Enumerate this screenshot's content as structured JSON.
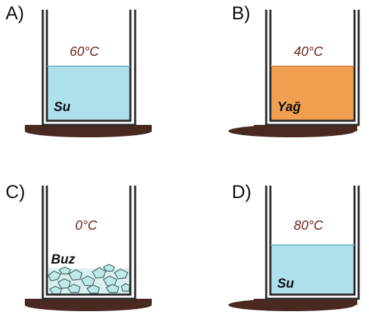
{
  "options": {
    "a": {
      "letter": "A)",
      "temperature": "60°C",
      "substance": "Su"
    },
    "b": {
      "letter": "B)",
      "temperature": "40°C",
      "substance": "Yağ"
    },
    "c": {
      "letter": "C)",
      "temperature": "0°C",
      "substance": "Buz"
    },
    "d": {
      "letter": "D)",
      "temperature": "80°C",
      "substance": "Su"
    }
  },
  "colors": {
    "water": "#aee0ec",
    "oil": "#f0a050",
    "ice": "#bfe8e8",
    "beaker_wall": "#2a2a2a",
    "base_shadow": "#4a2a20",
    "temperature_text": "#6e2318"
  }
}
